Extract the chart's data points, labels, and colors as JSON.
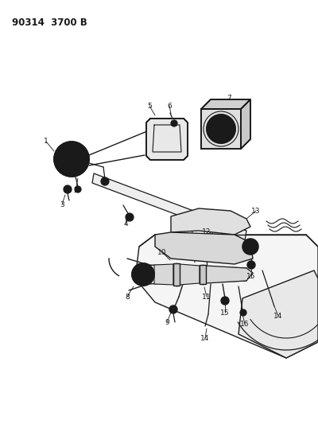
{
  "title": "90314  3700 B",
  "bg_color": "#ffffff",
  "line_color": "#1a1a1a",
  "label_color": "#1a1a1a",
  "fig_width": 4.0,
  "fig_height": 5.33,
  "dpi": 100
}
